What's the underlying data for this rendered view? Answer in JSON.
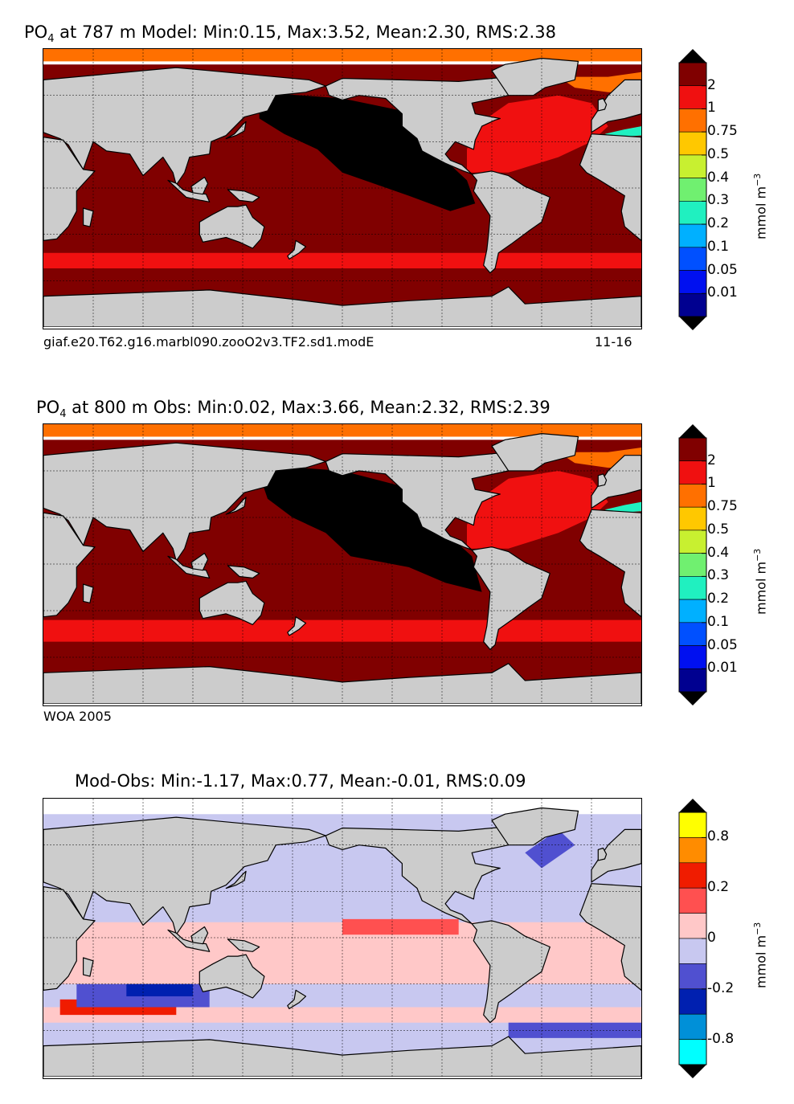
{
  "panels": [
    {
      "title_prefix": "PO",
      "title_sub": "4",
      "title_rest": " at 787 m Model: Min:0.15, Max:3.52, Mean:2.30, RMS:2.38",
      "caption_left": "giaf.e20.T62.g16.marbl090.zooO2v3.TF2.sd1.modE",
      "caption_right": "11-16"
    },
    {
      "title_prefix": "PO",
      "title_sub": "4",
      "title_rest": " at 800 m Obs: Min:0.02, Max:3.66, Mean:2.32, RMS:2.39",
      "caption_left": "WOA 2005",
      "caption_right": ""
    },
    {
      "title_prefix": "",
      "title_sub": "",
      "title_rest": "Mod-Obs: Min:-1.17, Max:0.77, Mean:-0.01, RMS:0.09",
      "caption_left": "",
      "caption_right": ""
    }
  ],
  "chart_data": [
    {
      "type": "heatmap",
      "title": "PO4 at 787 m Model: Min:0.15, Max:3.52, Mean:2.30, RMS:2.38",
      "stats": {
        "min": 0.15,
        "max": 3.52,
        "mean": 2.3,
        "rms": 2.38
      },
      "colorbar": {
        "unit": "mmol m-3",
        "tick_labels": [
          "2",
          "1",
          "0.75",
          "0.5",
          "0.4",
          "0.3",
          "0.2",
          "0.1",
          "0.05",
          "0.01"
        ],
        "colors": [
          "#800000",
          "#f01010",
          "#ff7000",
          "#ffc800",
          "#c8f030",
          "#70f070",
          "#20f0c0",
          "#00b0ff",
          "#0050ff",
          "#0010f0",
          "#000090"
        ]
      },
      "field_colors": {
        "land": "#cccccc",
        "missing": "#ffffff",
        "high": "#000000"
      }
    },
    {
      "type": "heatmap",
      "title": "PO4 at 800 m Obs: Min:0.02, Max:3.66, Mean:2.32, RMS:2.39",
      "stats": {
        "min": 0.02,
        "max": 3.66,
        "mean": 2.32,
        "rms": 2.39
      },
      "colorbar": {
        "unit": "mmol m-3",
        "tick_labels": [
          "2",
          "1",
          "0.75",
          "0.5",
          "0.4",
          "0.3",
          "0.2",
          "0.1",
          "0.05",
          "0.01"
        ],
        "colors": [
          "#800000",
          "#f01010",
          "#ff7000",
          "#ffc800",
          "#c8f030",
          "#70f070",
          "#20f0c0",
          "#00b0ff",
          "#0050ff",
          "#0010f0",
          "#000090"
        ]
      },
      "field_colors": {
        "land": "#cccccc",
        "missing": "#ffffff",
        "high": "#000000"
      }
    },
    {
      "type": "heatmap",
      "title": "Mod-Obs: Min:-1.17, Max:0.77, Mean:-0.01, RMS:0.09",
      "stats": {
        "min": -1.17,
        "max": 0.77,
        "mean": -0.01,
        "rms": 0.09
      },
      "colorbar": {
        "unit": "mmol m-3",
        "tick_labels": [
          "0.8",
          "0.2",
          "0",
          "-0.2",
          "-0.8"
        ],
        "colors": [
          "#ffff00",
          "#ff8c00",
          "#f01c00",
          "#ff5050",
          "#ffc8c8",
          "#c8c8f0",
          "#5050d0",
          "#0020b0",
          "#0090d8",
          "#00ffff"
        ]
      },
      "field_colors": {
        "land": "#cccccc",
        "missing": "#ffffff"
      }
    }
  ]
}
